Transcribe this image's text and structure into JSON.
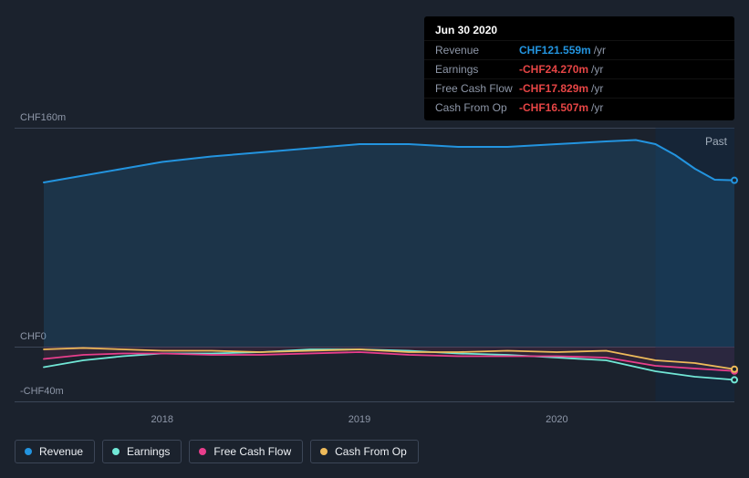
{
  "chart": {
    "type": "area-line",
    "background_color": "#1b222d",
    "grid_color": "#3c4657",
    "text_color": "#8e97a8",
    "past_label": "Past",
    "currency_prefix": "CHF",
    "y_axis": {
      "min": -40,
      "max": 160,
      "tick_values": [
        160,
        0,
        -40
      ],
      "tick_labels": [
        "CHF160m",
        "CHF0",
        "-CHF40m"
      ]
    },
    "x_axis": {
      "min": 2017.4,
      "max": 2020.9,
      "tick_values": [
        2018,
        2019,
        2020
      ],
      "tick_labels": [
        "2018",
        "2019",
        "2020"
      ]
    },
    "marker_x": 2020.5,
    "series": [
      {
        "key": "revenue",
        "label": "Revenue",
        "color": "#2394df",
        "fill_opacity": 0.16,
        "line_width": 2,
        "fill": true,
        "points": [
          [
            2017.4,
            120
          ],
          [
            2017.6,
            125
          ],
          [
            2017.8,
            130
          ],
          [
            2018.0,
            135
          ],
          [
            2018.25,
            139
          ],
          [
            2018.5,
            142
          ],
          [
            2018.75,
            145
          ],
          [
            2019.0,
            148
          ],
          [
            2019.25,
            148
          ],
          [
            2019.5,
            146
          ],
          [
            2019.75,
            146
          ],
          [
            2020.0,
            148
          ],
          [
            2020.25,
            150
          ],
          [
            2020.4,
            151
          ],
          [
            2020.5,
            148
          ],
          [
            2020.6,
            140
          ],
          [
            2020.7,
            130
          ],
          [
            2020.8,
            122
          ],
          [
            2020.9,
            121.559
          ]
        ]
      },
      {
        "key": "earnings",
        "label": "Earnings",
        "color": "#71e7d6",
        "fill_opacity": 0.0,
        "line_width": 1.8,
        "fill": false,
        "points": [
          [
            2017.4,
            -15
          ],
          [
            2017.6,
            -10
          ],
          [
            2017.8,
            -7
          ],
          [
            2018.0,
            -5
          ],
          [
            2018.25,
            -5
          ],
          [
            2018.5,
            -4
          ],
          [
            2018.75,
            -2
          ],
          [
            2019.0,
            -2
          ],
          [
            2019.25,
            -3
          ],
          [
            2019.5,
            -5
          ],
          [
            2019.75,
            -6
          ],
          [
            2020.0,
            -8
          ],
          [
            2020.25,
            -10
          ],
          [
            2020.5,
            -18
          ],
          [
            2020.7,
            -22
          ],
          [
            2020.9,
            -24.27
          ]
        ]
      },
      {
        "key": "fcf",
        "label": "Free Cash Flow",
        "color": "#e83e8c",
        "fill_opacity": 0.1,
        "line_width": 1.8,
        "fill": true,
        "points": [
          [
            2017.4,
            -9
          ],
          [
            2017.6,
            -6
          ],
          [
            2017.8,
            -5
          ],
          [
            2018.0,
            -5
          ],
          [
            2018.25,
            -6
          ],
          [
            2018.5,
            -6
          ],
          [
            2018.75,
            -5
          ],
          [
            2019.0,
            -4
          ],
          [
            2019.25,
            -6
          ],
          [
            2019.5,
            -7
          ],
          [
            2019.75,
            -7
          ],
          [
            2020.0,
            -7
          ],
          [
            2020.25,
            -8
          ],
          [
            2020.5,
            -14
          ],
          [
            2020.7,
            -16
          ],
          [
            2020.9,
            -17.829
          ]
        ]
      },
      {
        "key": "cfo",
        "label": "Cash From Op",
        "color": "#eeba5a",
        "fill_opacity": 0.0,
        "line_width": 1.8,
        "fill": false,
        "points": [
          [
            2017.4,
            -2
          ],
          [
            2017.6,
            -1
          ],
          [
            2017.8,
            -2
          ],
          [
            2018.0,
            -3
          ],
          [
            2018.25,
            -3
          ],
          [
            2018.5,
            -4
          ],
          [
            2018.75,
            -3
          ],
          [
            2019.0,
            -2
          ],
          [
            2019.25,
            -4
          ],
          [
            2019.5,
            -4
          ],
          [
            2019.75,
            -3
          ],
          [
            2020.0,
            -4
          ],
          [
            2020.25,
            -3
          ],
          [
            2020.5,
            -10
          ],
          [
            2020.7,
            -12
          ],
          [
            2020.9,
            -16.507
          ]
        ]
      }
    ]
  },
  "tooltip": {
    "title": "Jun 30 2020",
    "rows": [
      {
        "label": "Revenue",
        "value": "CHF121.559m",
        "unit": "/yr",
        "color": "#2394df"
      },
      {
        "label": "Earnings",
        "value": "-CHF24.270m",
        "unit": "/yr",
        "color": "#e64545"
      },
      {
        "label": "Free Cash Flow",
        "value": "-CHF17.829m",
        "unit": "/yr",
        "color": "#e64545"
      },
      {
        "label": "Cash From Op",
        "value": "-CHF16.507m",
        "unit": "/yr",
        "color": "#e64545"
      }
    ]
  },
  "legend": {
    "items": [
      {
        "label": "Revenue",
        "color": "#2394df"
      },
      {
        "label": "Earnings",
        "color": "#71e7d6"
      },
      {
        "label": "Free Cash Flow",
        "color": "#e83e8c"
      },
      {
        "label": "Cash From Op",
        "color": "#eeba5a"
      }
    ]
  }
}
